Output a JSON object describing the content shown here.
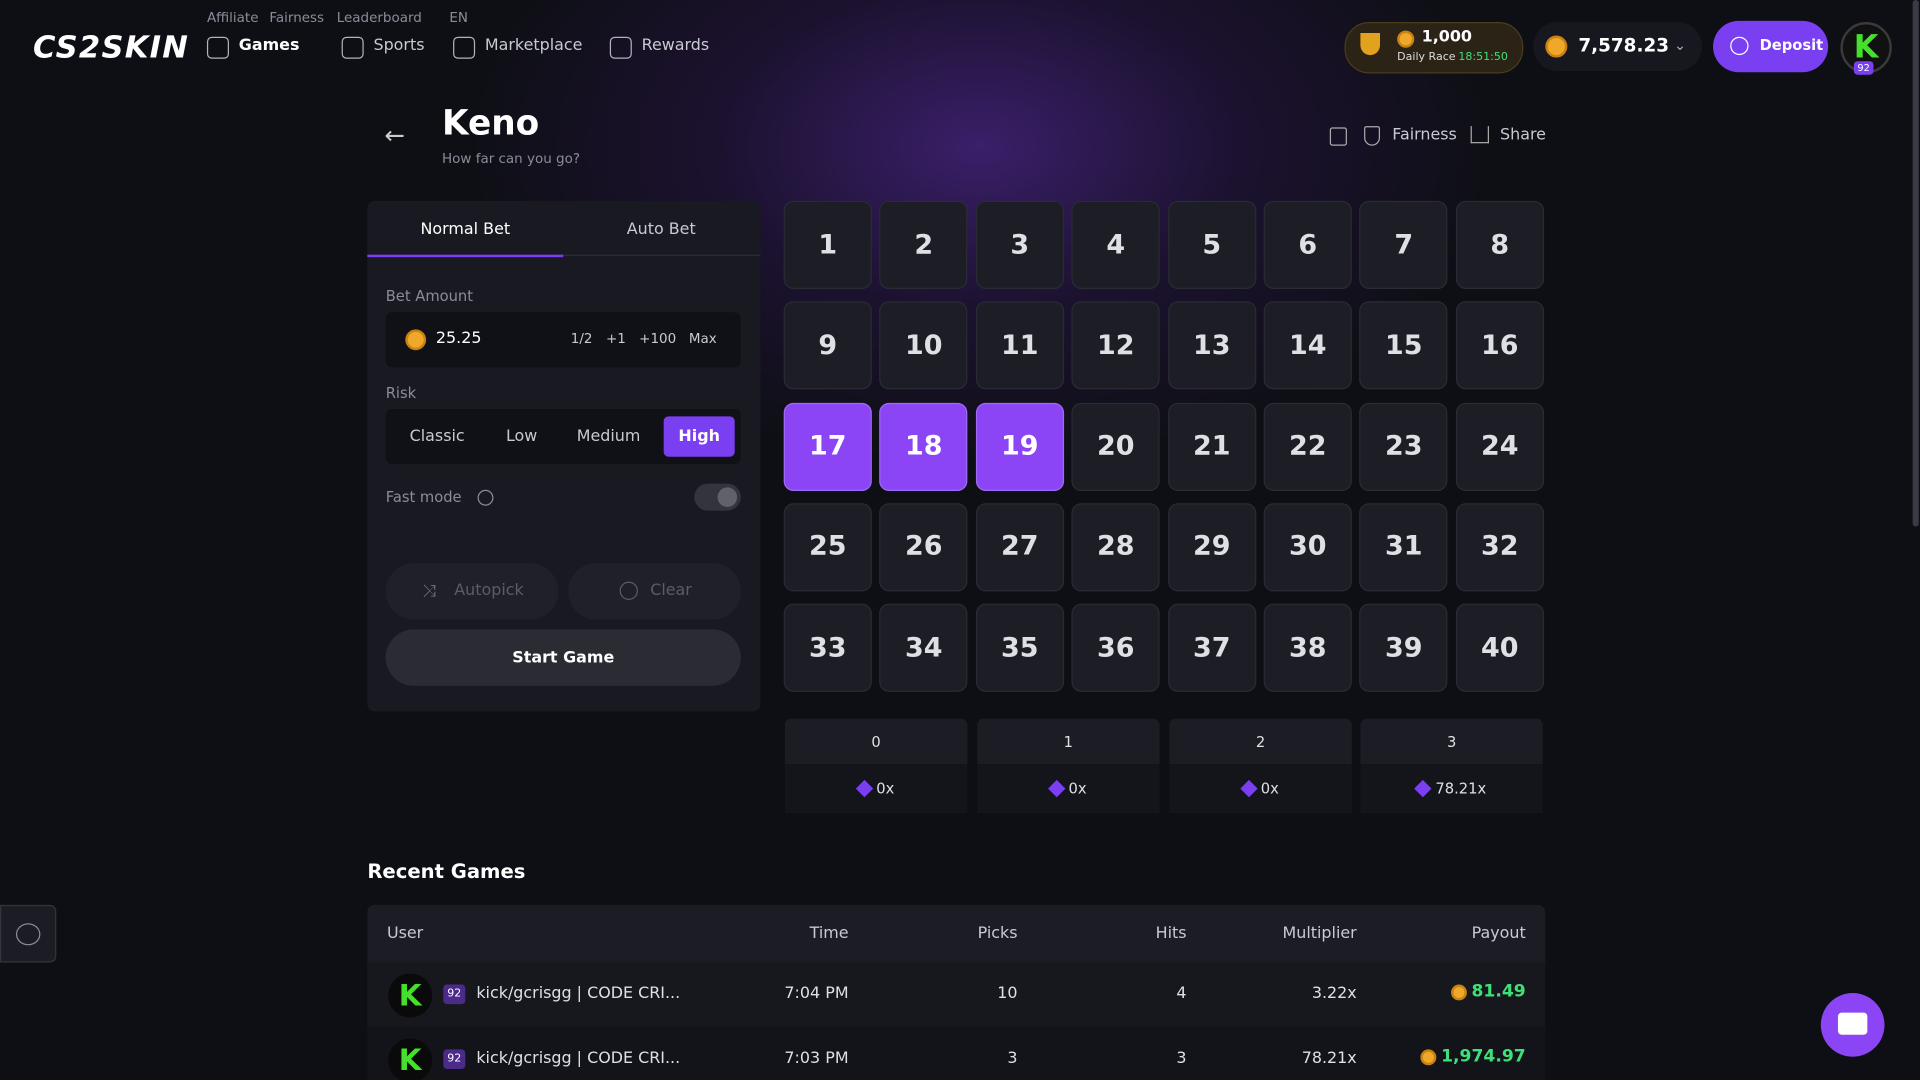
{
  "nav": {
    "logo": "CS2SKIN",
    "top_links": [
      "Affiliate",
      "Fairness",
      "Leaderboard",
      "EN"
    ],
    "main_links": [
      "Games",
      "Sports",
      "Marketplace",
      "Rewards"
    ],
    "race": {
      "amount": "1,000",
      "label": "Daily Race",
      "timer": "18:51:50"
    },
    "balance": "7,578.23",
    "deposit": "Deposit",
    "level": "92"
  },
  "header": {
    "title": "Keno",
    "subtitle": "How far can you go?",
    "actions": [
      "Fairness",
      "Share"
    ]
  },
  "bet_panel": {
    "tabs": [
      "Normal Bet",
      "Auto Bet"
    ],
    "amount_label": "Bet Amount",
    "amount": "25.25",
    "amount_buttons": [
      "1/2",
      "+1",
      "+100",
      "Max"
    ],
    "risk_label": "Risk",
    "risk_options": [
      "Classic",
      "Low",
      "Medium",
      "High"
    ],
    "active_risk": "High",
    "fast_mode": "Fast mode",
    "autopick": "Autopick",
    "clear": "Clear",
    "start": "Start Game"
  },
  "board": {
    "tiles": [
      1,
      2,
      3,
      4,
      5,
      6,
      7,
      8,
      9,
      10,
      11,
      12,
      13,
      14,
      15,
      16,
      17,
      18,
      19,
      20,
      21,
      22,
      23,
      24,
      25,
      26,
      27,
      28,
      29,
      30,
      31,
      32,
      33,
      34,
      35,
      36,
      37,
      38,
      39,
      40
    ],
    "selected": [
      17,
      18,
      19
    ]
  },
  "payouts": {
    "hits": [
      "0",
      "1",
      "2",
      "3"
    ],
    "multipliers": [
      "0x",
      "0x",
      "0x",
      "78.21x"
    ]
  },
  "recent_games": {
    "title": "Recent Games",
    "columns": [
      "User",
      "Time",
      "Picks",
      "Hits",
      "Multiplier",
      "Payout"
    ],
    "rows": [
      {
        "level": "92",
        "user": "kick/gcrisgg | CODE CRI...",
        "time": "7:04 PM",
        "picks": 10,
        "hits": 4,
        "multiplier": "3.22x",
        "payout": "81.49"
      },
      {
        "level": "92",
        "user": "kick/gcrisgg | CODE CRI...",
        "time": "7:03 PM",
        "picks": 3,
        "hits": 3,
        "multiplier": "78.21x",
        "payout": "1,974.97"
      }
    ]
  }
}
